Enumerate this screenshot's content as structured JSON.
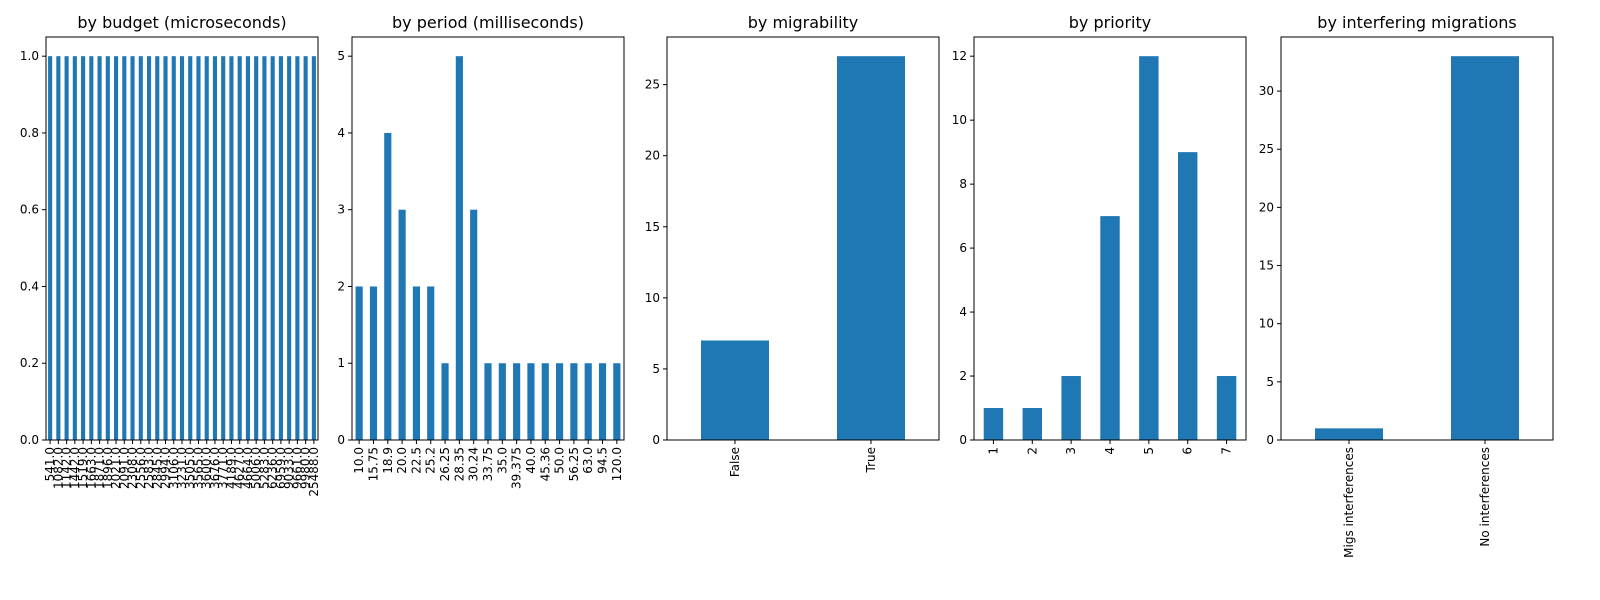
{
  "chart_data": [
    {
      "type": "bar",
      "title": "by budget (microseconds)",
      "xlabel": "",
      "ylabel": "",
      "ylim": [
        0,
        1.05
      ],
      "yticks": [
        "0.0",
        "0.2",
        "0.4",
        "0.6",
        "0.8",
        "1.0"
      ],
      "categories": [
        "541.0",
        "1082.0",
        "1142.0",
        "1442.0",
        "1519.0",
        "1663.0",
        "1871.0",
        "1896.0",
        "2021.0",
        "2091.0",
        "2308.0",
        "2556.0",
        "2583.0",
        "2845.0",
        "2994.0",
        "3106.0",
        "3231.0",
        "3505.0",
        "3565.0",
        "3600.0",
        "3676.0",
        "3771.0",
        "4189.0",
        "4627.0",
        "4664.0",
        "5006.0",
        "5283.0",
        "6236.0",
        "6959.0",
        "9033.0",
        "9661.0",
        "9980.0",
        "25488.0"
      ],
      "values": [
        1,
        1,
        1,
        1,
        1,
        1,
        1,
        1,
        1,
        1,
        1,
        1,
        1,
        1,
        1,
        1,
        1,
        1,
        1,
        1,
        1,
        1,
        1,
        1,
        1,
        1,
        1,
        1,
        1,
        1,
        1,
        1,
        1
      ]
    },
    {
      "type": "bar",
      "title": "by period (milliseconds)",
      "xlabel": "",
      "ylabel": "",
      "ylim": [
        0,
        5.25
      ],
      "yticks": [
        "0",
        "1",
        "2",
        "3",
        "4",
        "5"
      ],
      "categories": [
        "10.0",
        "15.75",
        "18.9",
        "20.0",
        "22.5",
        "25.2",
        "26.25",
        "28.35",
        "30.24",
        "33.75",
        "35.0",
        "39.375",
        "40.0",
        "45.36",
        "50.0",
        "56.25",
        "63.0",
        "94.5",
        "120.0"
      ],
      "values": [
        2,
        2,
        4,
        3,
        2,
        2,
        1,
        5,
        3,
        1,
        1,
        1,
        1,
        1,
        1,
        1,
        1,
        1,
        1
      ]
    },
    {
      "type": "bar",
      "title": "by migrability",
      "xlabel": "",
      "ylabel": "",
      "ylim": [
        0,
        28.35
      ],
      "yticks": [
        "0",
        "5",
        "10",
        "15",
        "20",
        "25"
      ],
      "categories": [
        "False",
        "True"
      ],
      "values": [
        7,
        27
      ]
    },
    {
      "type": "bar",
      "title": "by priority",
      "xlabel": "",
      "ylabel": "",
      "ylim": [
        0,
        12.6
      ],
      "yticks": [
        "0",
        "2",
        "4",
        "6",
        "8",
        "10",
        "12"
      ],
      "categories": [
        "1",
        "2",
        "3",
        "4",
        "5",
        "6",
        "7"
      ],
      "values": [
        1,
        1,
        2,
        7,
        12,
        9,
        2
      ]
    },
    {
      "type": "bar",
      "title": "by interfering migrations",
      "xlabel": "",
      "ylabel": "",
      "ylim": [
        0,
        34.65
      ],
      "yticks": [
        "0",
        "5",
        "10",
        "15",
        "20",
        "25",
        "30"
      ],
      "categories": [
        "Migs interferences",
        "No interferences"
      ],
      "values": [
        1,
        33
      ]
    }
  ],
  "style": {
    "bar_color": "#1f77b4",
    "axis_color": "#000000"
  }
}
